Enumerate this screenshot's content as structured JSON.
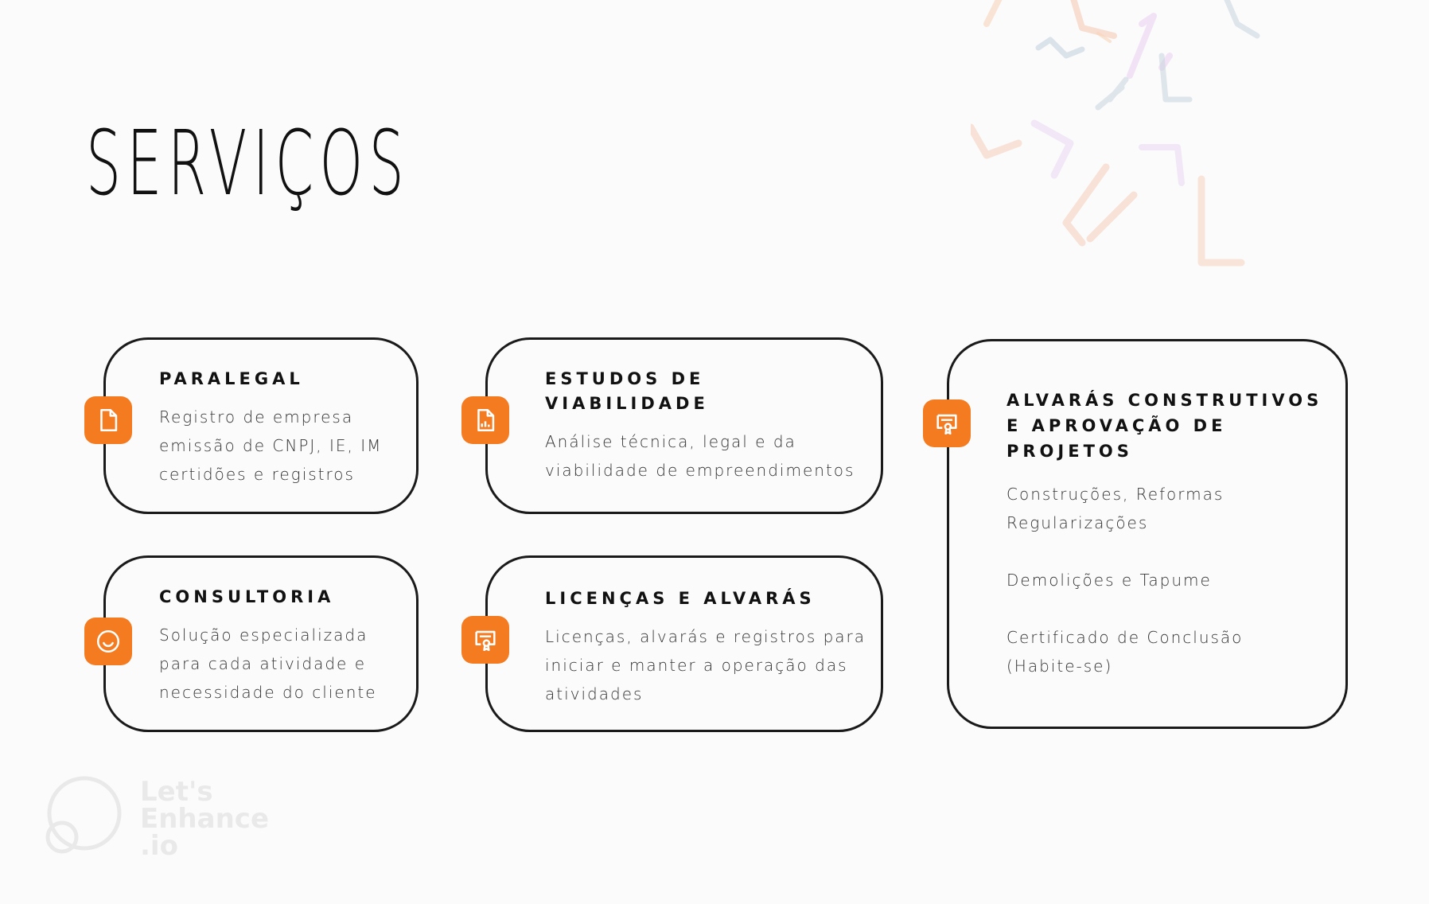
{
  "page": {
    "title": "SERVIÇOS"
  },
  "colors": {
    "accent": "#f57b20",
    "border": "#1a1a1a",
    "background": "#fbfbfb"
  },
  "cards": [
    {
      "title": "PARALEGAL",
      "icon": "document-icon",
      "lines": [
        "Registro de empresa",
        "emissão de CNPJ, IE, IM",
        "certidões e registros"
      ]
    },
    {
      "title_lines": [
        "ESTUDOS DE",
        "VIABILIDADE"
      ],
      "icon": "report-chart-icon",
      "lines": [
        "Análise técnica, legal e da",
        "viabilidade de empreendimentos"
      ]
    },
    {
      "title_lines": [
        "ALVARÁS CONSTRUTIVOS",
        "E APROVAÇÃO DE",
        "PROJETOS"
      ],
      "icon": "certificate-icon",
      "groups": [
        [
          "Construções, Reformas",
          "Regularizações"
        ],
        [
          "Demolições e Tapume"
        ],
        [
          "Certificado de Conclusão",
          "(Habite-se)"
        ]
      ]
    },
    {
      "title": "CONSULTORIA",
      "icon": "smile-icon",
      "lines": [
        "Solução especializada",
        "para cada atividade e",
        "necessidade do cliente"
      ]
    },
    {
      "title": "LICENÇAS E ALVARÁS",
      "icon": "certificate-icon",
      "lines": [
        "Licenças, alvarás e registros para",
        "iniciar e manter a operação das",
        "atividades"
      ]
    }
  ],
  "watermark": {
    "lines": [
      "Let's",
      "Enhance",
      ".io"
    ]
  }
}
